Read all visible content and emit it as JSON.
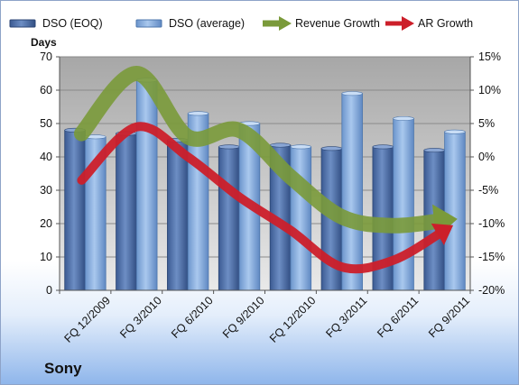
{
  "chart_data": {
    "type": "bar",
    "categories": [
      "FQ 12/2009",
      "FQ 3/2010",
      "FQ 6/2010",
      "FQ 9/2010",
      "FQ 12/2010",
      "FQ 3/2011",
      "FQ 6/2011",
      "FQ 9/2011"
    ],
    "series": [
      {
        "name": "DSO (EOQ)",
        "axis": "left",
        "kind": "bar",
        "color": "#4f6fa6",
        "values": [
          48,
          47,
          45,
          43,
          43.5,
          42.5,
          43,
          42
        ]
      },
      {
        "name": "DSO (average)",
        "axis": "left",
        "kind": "bar",
        "color": "#7fa8dc",
        "values": [
          46,
          63,
          53,
          50,
          43,
          59,
          51.5,
          47.5
        ]
      },
      {
        "name": "Revenue Growth",
        "axis": "right",
        "kind": "arrow-line",
        "color": "#7a9a3a",
        "values": [
          3.5,
          12.5,
          3,
          4,
          -3,
          -9,
          -10.3,
          -9.5
        ]
      },
      {
        "name": "AR Growth",
        "axis": "right",
        "kind": "arrow-line",
        "color": "#cc1f2a",
        "values": [
          -3.5,
          4.5,
          0,
          -6,
          -11,
          -16.5,
          -15.5,
          -11
        ]
      }
    ],
    "ylabel": "Days",
    "ylim": [
      0,
      70
    ],
    "y_ticks": [
      "0",
      "10",
      "20",
      "30",
      "40",
      "50",
      "60",
      "70"
    ],
    "y2lim": [
      -20,
      15
    ],
    "y2_ticks": [
      "-20%",
      "-15%",
      "-10%",
      "-5%",
      "0%",
      "5%",
      "10%",
      "15%"
    ],
    "grid": true,
    "legend": "top",
    "company": "Sony"
  }
}
